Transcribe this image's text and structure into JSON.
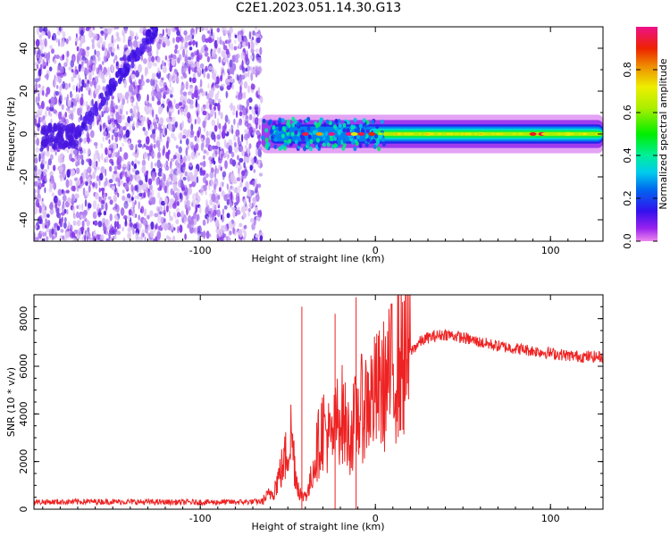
{
  "title": "C2E1.2023.051.14.30.G13",
  "colors": {
    "snr_line": "#ee2222",
    "spectrum_low": "#8822ee",
    "spectrum_high": "#ee2288"
  },
  "chart_data": [
    {
      "type": "heatmap",
      "name": "spectrogram",
      "xlabel": "Height of straight line (km)",
      "ylabel": "Frequency (Hz)",
      "xlim": [
        -195,
        130
      ],
      "ylim": [
        -50,
        50
      ],
      "xticks": [
        -100,
        0,
        100
      ],
      "xtick_labels": [
        "-100",
        "0",
        "100"
      ],
      "yticks": [
        -40,
        -20,
        0,
        20,
        40
      ],
      "ytick_labels": [
        "-40",
        "-20",
        "0",
        "20",
        "40"
      ],
      "colorbar": {
        "label": "Normalized spectral amplitude",
        "range": [
          0,
          1
        ],
        "ticks": [
          0.0,
          0.2,
          0.4,
          0.6,
          0.8
        ],
        "tick_labels": [
          "0.0",
          "0.2",
          "0.4",
          "0.6",
          "0.8"
        ]
      },
      "regions": [
        {
          "name": "noise",
          "x_range": [
            -195,
            -65
          ],
          "freq_range": [
            -50,
            50
          ],
          "amplitude": 0.1
        },
        {
          "name": "diagonal-trace",
          "x_from": -175,
          "x_to": -125,
          "freq_from": -5,
          "freq_to": 50,
          "amplitude": 0.15
        },
        {
          "name": "direct-signal",
          "x_range": [
            -65,
            130
          ],
          "freq_center": 0,
          "half_width": 4,
          "peak_amplitude": 1.0
        }
      ]
    },
    {
      "type": "line",
      "name": "snr",
      "xlabel": "Height of straight line (km)",
      "ylabel": "SNR (10 * v/v)",
      "xlim": [
        -195,
        130
      ],
      "ylim": [
        0,
        9000
      ],
      "xticks": [
        -100,
        0,
        100
      ],
      "xtick_labels": [
        "-100",
        "0",
        "100"
      ],
      "yticks": [
        0,
        2000,
        4000,
        6000,
        8000
      ],
      "ytick_labels": [
        "0",
        "2000",
        "4000",
        "6000",
        "8000"
      ],
      "series": [
        {
          "name": "SNR",
          "x": [
            -195,
            -160,
            -130,
            -100,
            -80,
            -65,
            -58,
            -52,
            -48,
            -45,
            -42,
            -38,
            -35,
            -30,
            -25,
            -20,
            -15,
            -10,
            -5,
            0,
            5,
            10,
            15,
            20,
            25,
            30,
            40,
            50,
            60,
            70,
            80,
            90,
            100,
            110,
            120,
            130
          ],
          "y": [
            300,
            320,
            300,
            290,
            300,
            320,
            800,
            2000,
            3200,
            1200,
            500,
            800,
            2000,
            3500,
            2800,
            4200,
            3000,
            4000,
            4500,
            4800,
            5200,
            5800,
            6200,
            6600,
            7000,
            7200,
            7350,
            7200,
            7000,
            6850,
            6750,
            6650,
            6550,
            6450,
            6400,
            6400
          ]
        }
      ],
      "spikes": [
        {
          "x": -42,
          "y": 8500
        },
        {
          "x": -23,
          "y": 8200
        },
        {
          "x": -11,
          "y": 8900
        }
      ]
    }
  ]
}
